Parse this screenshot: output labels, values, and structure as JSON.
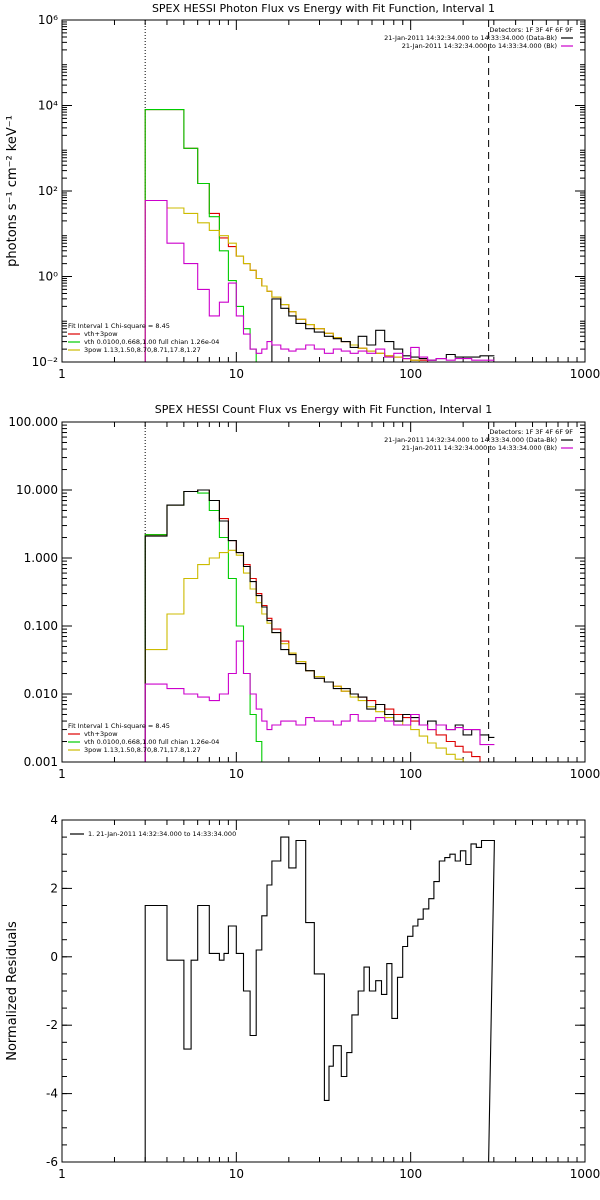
{
  "chart_data": [
    {
      "type": "line",
      "title": "SPEX HESSI Photon Flux vs Energy with Fit Function, Interval 1",
      "xlabel": "",
      "ylabel": "photons s⁻¹ cm⁻² keV⁻¹",
      "xscale": "log",
      "yscale": "log",
      "xlim": [
        1,
        1000
      ],
      "ylim": [
        0.01,
        1000000
      ],
      "x_ticks": [
        1,
        10,
        100,
        1000
      ],
      "x_tick_labels": [
        "1",
        "10",
        "100",
        "1000"
      ],
      "y_ticks": [
        0.01,
        1,
        100,
        10000,
        1000000
      ],
      "y_tick_labels": [
        "10⁻²",
        "10⁰",
        "10²",
        "10⁴",
        "10⁶"
      ],
      "vlines": [
        {
          "x": 3,
          "style": "dotted"
        },
        {
          "x": 280,
          "style": "dashed"
        }
      ],
      "legend_top": {
        "position": "top-right",
        "header": "Detectors: 1F 3F 4F 6F 9F",
        "entries": [
          {
            "label": "21-Jan-2011 14:32:34.000 to 14:33:34.000 (Data-Bk)",
            "color": "#000000"
          },
          {
            "label": "21-Jan-2011 14:32:34.000 to 14:33:34.000 (Bk)",
            "color": "#cc00cc"
          }
        ]
      },
      "legend_bottom": {
        "position": "bottom-left",
        "header": "Fit Interval 1    Chi-square = 8.45",
        "entries": [
          {
            "label": "vth+3pow",
            "color": "#dd0000"
          },
          {
            "label": "vth 0.0100,0.668,1.00  full chian 1.26e-04",
            "color": "#00cc00"
          },
          {
            "label": "3pow 1.13,1.50,8.70,8.71,17.8,1.27",
            "color": "#ccbb00"
          }
        ]
      },
      "series": [
        {
          "name": "vth+3pow",
          "color": "#dd0000",
          "step": true,
          "x": [
            3,
            4,
            5,
            6,
            7,
            8,
            9,
            10,
            11,
            12,
            13,
            14,
            15,
            16,
            18,
            20,
            22,
            25,
            28,
            32,
            36,
            40,
            45,
            50,
            56,
            63,
            71,
            80,
            90,
            100,
            112,
            125,
            140,
            160,
            180,
            200,
            224,
            250,
            280
          ],
          "y": [
            8000,
            8000,
            1000,
            150,
            30,
            8,
            5,
            3,
            2,
            1.4,
            0.9,
            0.6,
            0.45,
            0.33,
            0.22,
            0.15,
            0.1,
            0.075,
            0.06,
            0.047,
            0.037,
            0.03,
            0.025,
            0.021,
            0.018,
            0.016,
            0.014,
            0.013,
            0.012,
            0.011,
            0.011,
            0.01,
            0.01,
            0.01,
            0.01,
            0.01,
            0.01,
            0.01,
            0.01
          ]
        },
        {
          "name": "vth 0.0100,0.668,1.00  full chian 1.26e-04",
          "color": "#00cc00",
          "step": true,
          "x": [
            3,
            4,
            5,
            6,
            7,
            8,
            9,
            10,
            11,
            12,
            13,
            14
          ],
          "y": [
            8000,
            8000,
            1000,
            150,
            25,
            4,
            0.8,
            0.2,
            0.06,
            0.02,
            0.008,
            0.008
          ]
        },
        {
          "name": "3pow 1.13,1.50,8.70,8.71,17.8,1.27",
          "color": "#ccbb00",
          "step": true,
          "x": [
            3,
            4,
            5,
            6,
            7,
            8,
            9,
            10,
            11,
            12,
            13,
            14,
            15,
            16,
            18,
            20,
            22,
            25,
            28,
            32,
            36,
            40,
            45,
            50,
            56,
            63,
            71,
            80,
            90,
            100,
            112,
            125,
            140,
            160,
            180,
            200,
            224,
            250,
            280
          ],
          "y": [
            60,
            40,
            30,
            18,
            12,
            9,
            6,
            3,
            2,
            1.4,
            0.9,
            0.6,
            0.45,
            0.33,
            0.22,
            0.15,
            0.1,
            0.075,
            0.06,
            0.047,
            0.037,
            0.03,
            0.025,
            0.021,
            0.018,
            0.016,
            0.014,
            0.013,
            0.012,
            0.011,
            0.01,
            0.01,
            0.01,
            0.01,
            0.01,
            0.01,
            0.01,
            0.01,
            0.01
          ]
        },
        {
          "name": "21-Jan-2011 14:32:34.000 to 14:33:34.000 (Data-Bk)",
          "color": "#000000",
          "step": true,
          "x": [
            16,
            18,
            20,
            22,
            25,
            28,
            32,
            36,
            40,
            45,
            50,
            56,
            63,
            71,
            80,
            90,
            100,
            112,
            125,
            140,
            160,
            180,
            200,
            224,
            250,
            280
          ],
          "y": [
            0.3,
            0.18,
            0.12,
            0.08,
            0.06,
            0.05,
            0.04,
            0.035,
            0.03,
            0.022,
            0.04,
            0.025,
            0.055,
            0.03,
            0.02,
            0.014,
            0.013,
            0.012,
            0.011,
            0.012,
            0.015,
            0.013,
            0.013,
            0.013,
            0.014,
            0.014
          ]
        },
        {
          "name": "21-Jan-2011 14:32:34.000 to 14:33:34.000 (Bk)",
          "color": "#cc00cc",
          "step": true,
          "x": [
            3,
            4,
            5,
            6,
            7,
            8,
            9,
            10,
            11,
            12,
            13,
            14,
            15,
            16,
            18,
            20,
            22,
            25,
            28,
            32,
            36,
            40,
            45,
            50,
            56,
            63,
            71,
            80,
            90,
            100,
            112,
            125,
            140,
            160,
            180,
            200,
            224,
            250,
            280
          ],
          "y": [
            60,
            6,
            2,
            0.5,
            0.12,
            0.25,
            0.7,
            0.12,
            0.045,
            0.02,
            0.016,
            0.02,
            0.03,
            0.025,
            0.02,
            0.018,
            0.02,
            0.025,
            0.02,
            0.016,
            0.02,
            0.018,
            0.016,
            0.018,
            0.016,
            0.02,
            0.013,
            0.016,
            0.012,
            0.022,
            0.013,
            0.011,
            0.012,
            0.011,
            0.012,
            0.012,
            0.011,
            0.011,
            0.011
          ]
        }
      ]
    },
    {
      "type": "line",
      "title": "SPEX HESSI Count Flux vs Energy with Fit Function, Interval 1",
      "xlabel": "",
      "ylabel": "",
      "xscale": "log",
      "yscale": "log",
      "xlim": [
        1,
        1000
      ],
      "ylim": [
        0.001,
        100
      ],
      "x_ticks": [
        1,
        10,
        100,
        1000
      ],
      "x_tick_labels": [
        "1",
        "10",
        "100",
        "1000"
      ],
      "y_ticks": [
        0.001,
        0.01,
        0.1,
        1,
        10,
        100
      ],
      "y_tick_labels": [
        "0.001",
        "0.010",
        "0.100",
        "1.000",
        "10.000",
        "100.000"
      ],
      "vlines": [
        {
          "x": 3,
          "style": "dotted"
        },
        {
          "x": 280,
          "style": "dashed"
        }
      ],
      "legend_top": {
        "position": "top-right",
        "header": "Detectors: 1F 3F 4F 6F 9F",
        "entries": [
          {
            "label": "21-Jan-2011 14:32:34.000 to 14:33:34.000 (Data-Bk)",
            "color": "#000000"
          },
          {
            "label": "21-Jan-2011 14:32:34.000 to 14:33:34.000 (Bk)",
            "color": "#cc00cc"
          }
        ]
      },
      "legend_bottom": {
        "position": "bottom-left",
        "header": "Fit Interval 1    Chi-square = 8.45",
        "entries": [
          {
            "label": "vth+3pow",
            "color": "#dd0000"
          },
          {
            "label": "vth 0.0100,0.668,1.00  full chian 1.26e-04",
            "color": "#00cc00"
          },
          {
            "label": "3pow 1.13,1.50,8.70,8.71,17.8,1.27",
            "color": "#ccbb00"
          }
        ]
      },
      "series": [
        {
          "name": "vth+3pow",
          "color": "#dd0000",
          "step": true,
          "x": [
            3,
            4,
            5,
            6,
            7,
            8,
            9,
            10,
            11,
            12,
            13,
            14,
            15,
            16,
            18,
            20,
            22,
            25,
            28,
            32,
            36,
            40,
            45,
            50,
            56,
            63,
            71,
            80,
            90,
            100,
            112,
            125,
            140,
            160,
            180,
            200,
            224,
            250,
            280
          ],
          "y": [
            2.2,
            6,
            9.5,
            10,
            7,
            3.8,
            1.8,
            1.2,
            0.8,
            0.5,
            0.3,
            0.2,
            0.13,
            0.09,
            0.06,
            0.04,
            0.03,
            0.022,
            0.018,
            0.015,
            0.013,
            0.011,
            0.01,
            0.009,
            0.008,
            0.007,
            0.006,
            0.005,
            0.0045,
            0.004,
            0.0035,
            0.003,
            0.0025,
            0.002,
            0.0017,
            0.0014,
            0.0012,
            0.001,
            0.001
          ]
        },
        {
          "name": "vth 0.0100,0.668,1.00  full chian 1.26e-04",
          "color": "#00cc00",
          "step": true,
          "x": [
            3,
            4,
            5,
            6,
            7,
            8,
            9,
            10,
            11,
            12,
            13,
            14,
            15
          ],
          "y": [
            2.2,
            6,
            9.5,
            9,
            5,
            2,
            0.5,
            0.1,
            0.02,
            0.005,
            0.002,
            0.001,
            0.001
          ]
        },
        {
          "name": "3pow 1.13,1.50,8.70,8.71,17.8,1.27",
          "color": "#ccbb00",
          "step": true,
          "x": [
            3,
            4,
            5,
            6,
            7,
            8,
            9,
            10,
            11,
            12,
            13,
            14,
            15,
            16,
            18,
            20,
            22,
            25,
            28,
            32,
            36,
            40,
            45,
            50,
            56,
            63,
            71,
            80,
            90,
            100,
            112,
            125,
            140,
            160,
            180,
            200,
            224
          ],
          "y": [
            0.045,
            0.15,
            0.5,
            0.8,
            1.0,
            1.2,
            1.3,
            1.1,
            0.6,
            0.35,
            0.22,
            0.15,
            0.11,
            0.08,
            0.055,
            0.04,
            0.03,
            0.022,
            0.018,
            0.015,
            0.013,
            0.011,
            0.009,
            0.008,
            0.0065,
            0.0055,
            0.0045,
            0.004,
            0.0035,
            0.003,
            0.0024,
            0.0019,
            0.0016,
            0.0013,
            0.0011,
            0.001,
            0.001
          ]
        },
        {
          "name": "21-Jan-2011 14:32:34.000 to 14:33:34.000 (Data-Bk)",
          "color": "#000000",
          "step": true,
          "x": [
            3,
            4,
            5,
            6,
            7,
            8,
            9,
            10,
            11,
            12,
            13,
            14,
            15,
            16,
            18,
            20,
            22,
            25,
            28,
            32,
            36,
            40,
            45,
            50,
            56,
            63,
            71,
            80,
            90,
            100,
            112,
            125,
            140,
            160,
            180,
            200,
            224,
            250,
            280
          ],
          "y": [
            2.1,
            6,
            9.5,
            10,
            7,
            3.5,
            1.8,
            1.2,
            0.75,
            0.45,
            0.28,
            0.19,
            0.12,
            0.08,
            0.045,
            0.038,
            0.028,
            0.022,
            0.017,
            0.015,
            0.012,
            0.012,
            0.01,
            0.009,
            0.006,
            0.007,
            0.005,
            0.004,
            0.005,
            0.0045,
            0.0035,
            0.004,
            0.0035,
            0.003,
            0.0035,
            0.0025,
            0.003,
            0.0025,
            0.0023
          ]
        },
        {
          "name": "21-Jan-2011 14:32:34.000 to 14:33:34.000 (Bk)",
          "color": "#cc00cc",
          "step": true,
          "x": [
            3,
            4,
            5,
            6,
            7,
            8,
            9,
            10,
            11,
            12,
            13,
            14,
            15,
            16,
            18,
            20,
            22,
            25,
            28,
            32,
            36,
            40,
            45,
            50,
            56,
            63,
            71,
            80,
            90,
            100,
            112,
            125,
            140,
            160,
            180,
            200,
            224,
            250,
            280
          ],
          "y": [
            0.014,
            0.012,
            0.01,
            0.009,
            0.008,
            0.01,
            0.02,
            0.06,
            0.02,
            0.01,
            0.006,
            0.004,
            0.003,
            0.0035,
            0.004,
            0.004,
            0.0035,
            0.0045,
            0.004,
            0.004,
            0.0035,
            0.004,
            0.005,
            0.004,
            0.004,
            0.0045,
            0.004,
            0.0035,
            0.0035,
            0.005,
            0.0035,
            0.003,
            0.0035,
            0.003,
            0.0032,
            0.003,
            0.003,
            0.0018,
            0.0018
          ]
        }
      ]
    },
    {
      "type": "line",
      "title": "",
      "xlabel": "",
      "ylabel": "Normalized Residuals",
      "xscale": "log",
      "yscale": "linear",
      "xlim": [
        1,
        1000
      ],
      "ylim": [
        -6,
        4
      ],
      "x_ticks": [
        1,
        10,
        100,
        1000
      ],
      "x_tick_labels": [
        "1",
        "10",
        "100",
        "1000"
      ],
      "y_ticks": [
        -6,
        -4,
        -2,
        0,
        2,
        4
      ],
      "y_tick_labels": [
        "-6",
        "-4",
        "-2",
        "0",
        "2",
        "4"
      ],
      "legend": {
        "position": "top-left",
        "entries": [
          {
            "label": "1. 21-Jan-2011 14:32:34.000 to 14:33:34.000",
            "color": "#000000"
          }
        ]
      },
      "series": [
        {
          "name": "1. 21-Jan-2011 14:32:34.000 to 14:33:34.000",
          "color": "#000000",
          "step": true,
          "x": [
            3,
            4,
            5,
            5.5,
            6,
            7,
            8,
            8.5,
            9,
            10,
            11,
            12,
            13,
            14,
            15,
            16,
            18,
            20,
            22,
            25,
            28,
            32,
            34,
            36,
            40,
            43,
            46,
            50,
            54,
            58,
            63,
            68,
            73,
            78,
            84,
            90,
            96,
            103,
            110,
            118,
            127,
            136,
            146,
            157,
            168,
            180,
            193,
            207,
            222,
            238,
            255,
            280
          ],
          "y": [
            1.5,
            -0.1,
            -2.7,
            -0.1,
            1.5,
            0.1,
            -0.1,
            0.1,
            0.9,
            0.1,
            -1.0,
            -2.3,
            0.2,
            1.2,
            2.1,
            2.8,
            3.5,
            2.6,
            3.4,
            1.0,
            -0.5,
            -4.2,
            -3.2,
            -2.6,
            -3.5,
            -2.8,
            -1.7,
            -1.0,
            -0.3,
            -1.0,
            -0.7,
            -1.1,
            -0.2,
            -1.8,
            -0.6,
            0.3,
            0.6,
            0.9,
            1.1,
            1.4,
            1.7,
            2.2,
            2.8,
            2.9,
            3.0,
            2.8,
            3.1,
            2.7,
            3.3,
            3.2,
            3.4,
            3.4
          ]
        }
      ]
    }
  ]
}
